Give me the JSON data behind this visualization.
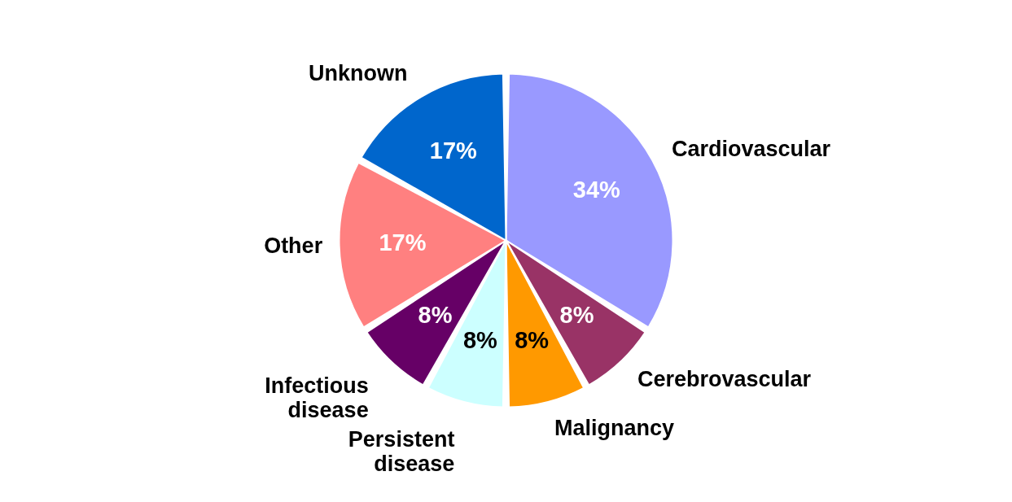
{
  "chart_data": {
    "type": "pie",
    "categories": [
      "Cardiovascular",
      "Cerebrovascular",
      "Malignancy",
      "Persistent disease",
      "Infectious disease",
      "Other",
      "Unknown"
    ],
    "values": [
      34,
      8,
      8,
      8,
      8,
      17,
      17
    ],
    "value_labels": [
      "34%",
      "8%",
      "8%",
      "8%",
      "8%",
      "17%",
      "17%"
    ],
    "colors": [
      "#9999ff",
      "#993366",
      "#ff9900",
      "#ccffff",
      "#660066",
      "#ff8080",
      "#0066cc"
    ]
  }
}
